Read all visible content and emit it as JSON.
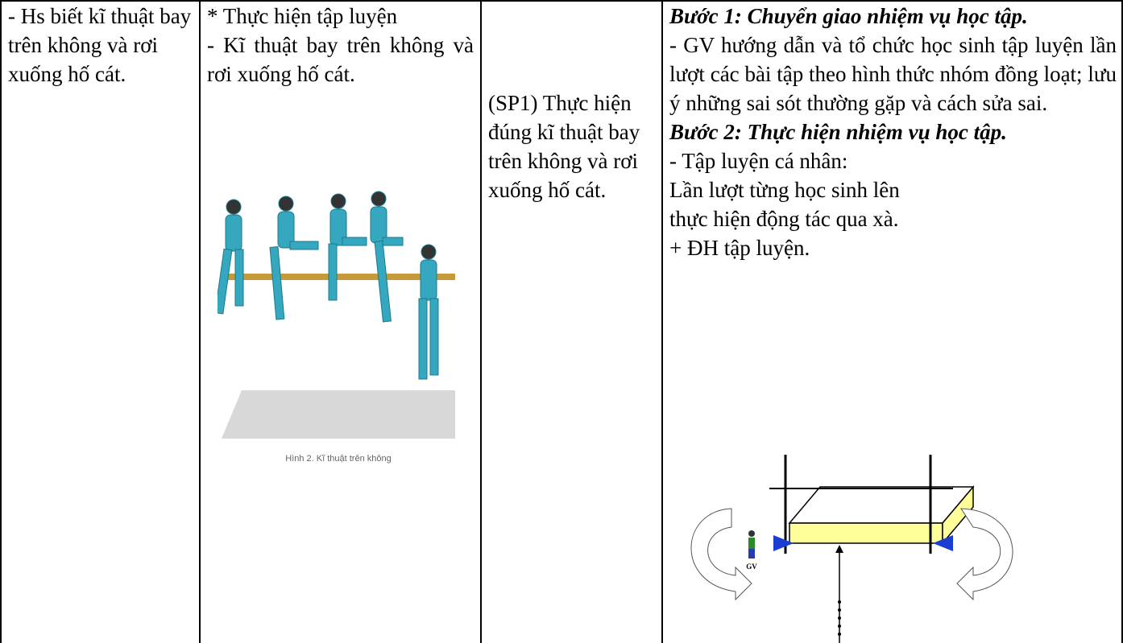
{
  "table": {
    "rows": [
      {
        "objective": "- Hs biết kĩ thuật bay trên không và rơi xuống hố cát.",
        "content": [
          "* Thực hiện tập luyện",
          "- Kĩ thuật bay trên không và rơi xuống hố cát."
        ],
        "figure_caption": "Hình 2. Kĩ thuật trên không",
        "product": "(SP1) Thực hiện đúng kĩ thuật bay trên không và rơi xuống hố cát.",
        "activities": [
          {
            "heading": "Bước 1: Chuyển giao nhiệm vụ học tập.",
            "lines": [
              "- GV hướng dẫn và tổ chức học sinh tập luyện lần lượt các bài tập theo hình thức nhóm đồng loạt; lưu ý những sai sót thường gặp và cách sửa sai."
            ]
          },
          {
            "heading": "Bước 2: Thực hiện nhiệm vụ học tập.",
            "lines": [
              "- Tập luyện cá nhân:",
              "Lần lượt từng học sinh lên thực hiện động tác qua xà.",
              "+ ĐH tập luyện."
            ]
          }
        ],
        "diagram_label": "GV"
      }
    ]
  }
}
